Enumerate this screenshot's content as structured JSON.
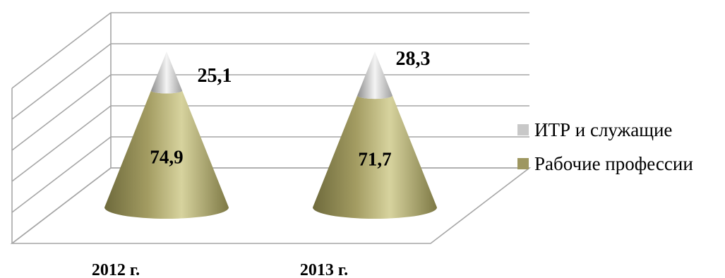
{
  "chart_data": {
    "type": "bar",
    "subtype": "3d-cone-stacked-percent",
    "categories": [
      "2012 г.",
      "2013 г."
    ],
    "series": [
      {
        "name": "Рабочие профессии",
        "values": [
          74.9,
          71.7
        ],
        "value_labels": [
          "74,9",
          "71,7"
        ],
        "color": "#9E9760"
      },
      {
        "name": "ИТР и служащие",
        "values": [
          25.1,
          28.3
        ],
        "value_labels": [
          "25,1",
          "28,3"
        ],
        "color": "#C8C8C8"
      }
    ],
    "ylim": [
      0,
      100
    ],
    "grid": true,
    "legend_position": "right"
  }
}
